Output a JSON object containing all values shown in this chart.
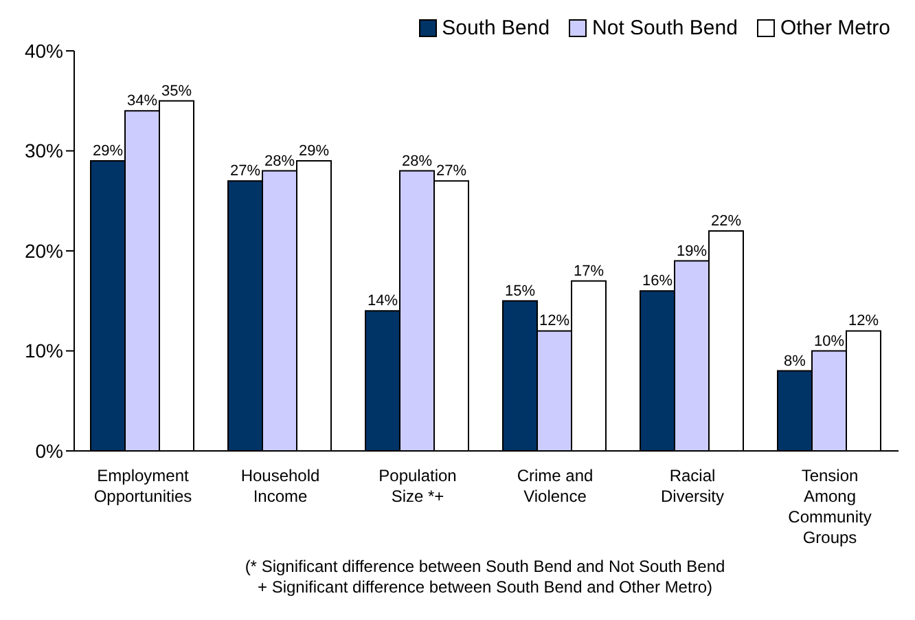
{
  "chart_data": {
    "type": "bar",
    "categories": [
      "Employment Opportunities",
      "Household Income",
      "Population Size *+",
      "Crime and Violence",
      "Racial Diversity",
      "Tension Among Community Groups"
    ],
    "series": [
      {
        "name": "South Bend",
        "color": "#003366",
        "values": [
          29,
          27,
          14,
          15,
          16,
          8
        ],
        "value_labels": [
          "29%",
          "27%",
          "14%",
          "15%",
          "16%",
          "8%"
        ]
      },
      {
        "name": "Not South Bend",
        "color": "#ccccff",
        "values": [
          34,
          28,
          28,
          12,
          19,
          10
        ],
        "value_labels": [
          "34%",
          "28%",
          "28%",
          "12%",
          "19%",
          "10%"
        ]
      },
      {
        "name": "Other Metro",
        "color": "#ffffff",
        "values": [
          35,
          29,
          27,
          17,
          22,
          12
        ],
        "value_labels": [
          "35%",
          "29%",
          "27%",
          "17%",
          "22%",
          "12%"
        ]
      }
    ],
    "ylim": [
      0,
      40
    ],
    "yticks": [
      {
        "value": 0,
        "label": "0%"
      },
      {
        "value": 10,
        "label": "10%"
      },
      {
        "value": 20,
        "label": "20%"
      },
      {
        "value": 30,
        "label": "30%"
      },
      {
        "value": 40,
        "label": "40%"
      }
    ],
    "grid": false,
    "legend": "top right",
    "annotations": [
      "(* Significant difference between South Bend and Not South Bend",
      "+ Significant difference between South Bend and Other Metro)"
    ]
  }
}
